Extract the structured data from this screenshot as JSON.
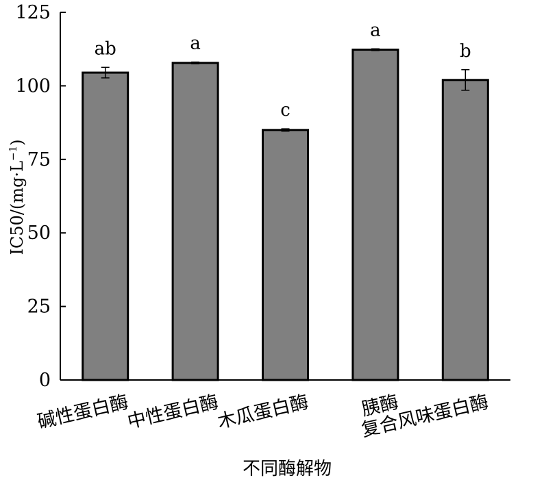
{
  "chart_data": {
    "type": "bar",
    "title": "",
    "xlabel": "不同酶解物",
    "ylabel": {
      "main": "IC50/(mg·L",
      "superscript": "−1",
      "close": ")"
    },
    "ylim": [
      0,
      125
    ],
    "yticks": [
      0,
      25,
      50,
      75,
      100,
      125
    ],
    "categories": [
      "碱性蛋白酶",
      "中性蛋白酶",
      "木瓜蛋白酶",
      "胰酶",
      "复合风味蛋白酶"
    ],
    "values": [
      104.5,
      107.8,
      85.0,
      112.3,
      102.0
    ],
    "errors": [
      1.8,
      0.3,
      0.4,
      0.3,
      3.5
    ],
    "significance": [
      "ab",
      "a",
      "c",
      "a",
      "b"
    ],
    "grid": false,
    "legend": "none",
    "bar_color": "#808080",
    "edge_color": "#000000"
  }
}
